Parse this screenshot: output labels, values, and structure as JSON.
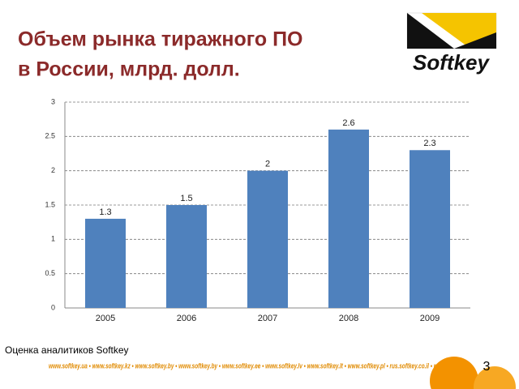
{
  "chart_data": {
    "type": "bar",
    "title": [
      "Объем рынка тиражного ПО",
      "в России, млрд. долл."
    ],
    "categories": [
      "2005",
      "2006",
      "2007",
      "2008",
      "2009"
    ],
    "values": [
      1.3,
      1.5,
      2,
      2.6,
      2.3
    ],
    "color": "#4f81bd",
    "ylim": [
      0,
      3
    ],
    "yticks": [
      0,
      0.5,
      1,
      1.5,
      2,
      2.5,
      3
    ],
    "grid": true,
    "source": "Оценка аналитиков Softkey",
    "logo": "Softkey",
    "page_number": "3",
    "footer_banner": "www.softkey.ua • www.softkey.kz • www.softkey.by • www.softkey.by • www.softkey.ee • www.softkey.lv • www.softkey.lt • www.softkey.pl • rus.softkey.co.il • rus.softkey.net"
  }
}
